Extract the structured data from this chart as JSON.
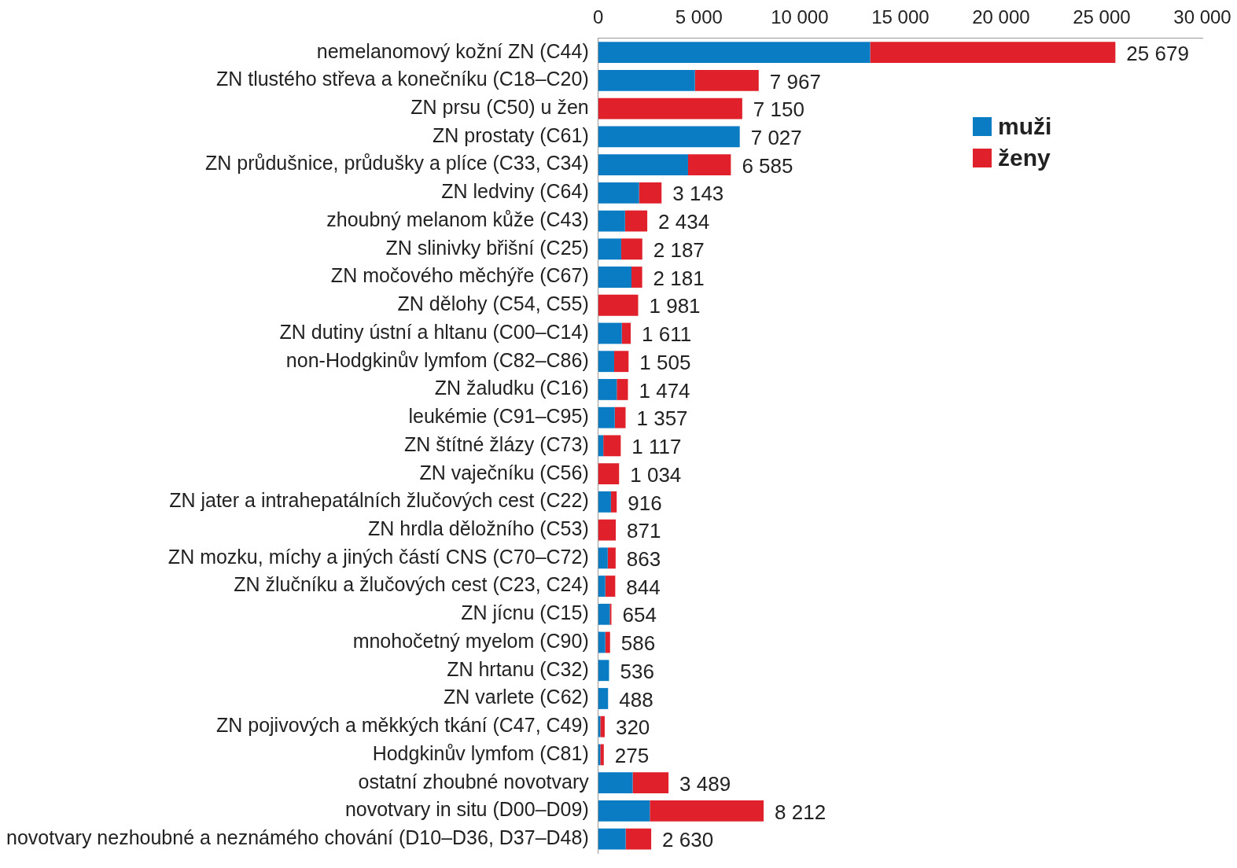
{
  "chart_data": {
    "type": "bar",
    "orientation": "horizontal",
    "stacked": true,
    "categories": [
      "nemelanomový kožní ZN (C44)",
      "ZN tlustého střeva a konečníku (C18–C20)",
      "ZN prsu (C50) u žen",
      "ZN prostaty (C61)",
      "ZN průdušnice, průdušky a plíce (C33, C34)",
      "ZN ledviny (C64)",
      "zhoubný melanom kůže (C43)",
      "ZN slinivky břišní (C25)",
      "ZN močového měchýře (C67)",
      "ZN dělohy (C54, C55)",
      "ZN dutiny ústní a hltanu (C00–C14)",
      "non-Hodgkinův lymfom (C82–C86)",
      "ZN žaludku (C16)",
      "leukémie (C91–C95)",
      "ZN štítné žlázy (C73)",
      "ZN vaječníku (C56)",
      "ZN jater a intrahepatálních žlučových cest (C22)",
      "ZN hrdla děložního (C53)",
      "ZN mozku, míchy a jiných částí CNS (C70–C72)",
      "ZN žlučníku a žlučových cest (C23, C24)",
      "ZN jícnu (C15)",
      "mnohočetný myelom (C90)",
      "ZN hrtanu (C32)",
      "ZN varlete (C62)",
      "ZN pojivových a měkkých tkání (C47, C49)",
      "Hodgkinův lymfom (C81)",
      "ostatní zhoubné novotvary",
      "novotvary in situ (D00–D09)",
      "novotvary nezhoubné a neznámého chování (D10–D36, D37–D48)"
    ],
    "series": [
      {
        "name": "muži",
        "color": "#0a7cc4",
        "values": [
          13500,
          4800,
          0,
          7027,
          4460,
          2025,
          1330,
          1140,
          1650,
          0,
          1170,
          790,
          920,
          820,
          250,
          0,
          630,
          0,
          470,
          350,
          570,
          350,
          536,
          488,
          100,
          100,
          1710,
          2560,
          1360
        ]
      },
      {
        "name": "ženy",
        "color": "#e0202a",
        "values": [
          12179,
          3167,
          7150,
          0,
          2125,
          1118,
          1104,
          1047,
          531,
          1981,
          441,
          715,
          554,
          537,
          867,
          1034,
          286,
          871,
          393,
          494,
          84,
          236,
          null,
          0,
          220,
          175,
          1779,
          5652,
          1270
        ]
      }
    ],
    "totals": [
      "25 679",
      "7 967",
      "7 150",
      "7 027",
      "6 585",
      "3 143",
      "2 434",
      "2 187",
      "2 181",
      "1 981",
      "1 611",
      "1 505",
      "1 474",
      "1 357",
      "1 117",
      "1 034",
      "916",
      "871",
      "863",
      "844",
      "654",
      "586",
      "536",
      "488",
      "320",
      "275",
      "3 489",
      "8 212",
      "2 630"
    ],
    "xlim": [
      0,
      30000
    ],
    "xticks": [
      {
        "value": 0,
        "label": "0"
      },
      {
        "value": 5000,
        "label": "5 000"
      },
      {
        "value": 10000,
        "label": "10 000"
      },
      {
        "value": 15000,
        "label": "15 000"
      },
      {
        "value": 20000,
        "label": "20 000"
      },
      {
        "value": 25000,
        "label": "25 000"
      },
      {
        "value": 30000,
        "label": "30 000"
      }
    ],
    "grid": false,
    "legend": "top right"
  }
}
